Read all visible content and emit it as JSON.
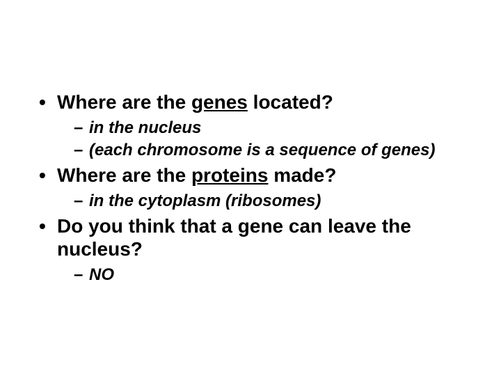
{
  "slide": {
    "background_color": "#ffffff",
    "text_color": "#000000",
    "bullets": [
      {
        "pre": "Where are the ",
        "underlined": "genes",
        "post": " located?",
        "sub": [
          "in the nucleus",
          "(each chromosome is a sequence of genes)"
        ]
      },
      {
        "pre": "Where are the ",
        "underlined": "proteins",
        "post": " made?",
        "sub": [
          "in the cytoplasm (ribosomes)"
        ]
      },
      {
        "pre": "Do you think that a gene can leave the nucleus?",
        "underlined": "",
        "post": "",
        "sub": [
          "NO"
        ]
      }
    ]
  }
}
